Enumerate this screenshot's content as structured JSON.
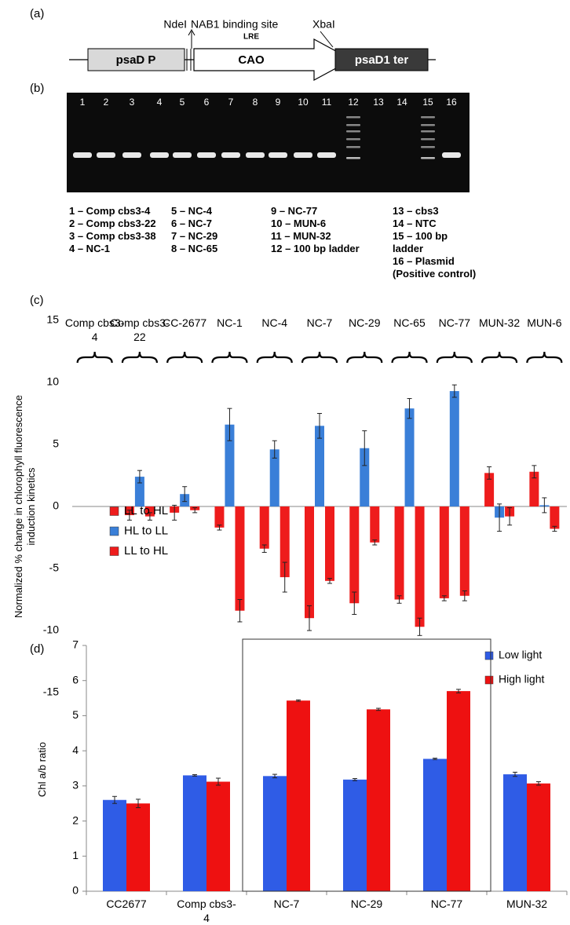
{
  "panel_labels": [
    "(a)",
    "(b)",
    "(c)",
    "(d)"
  ],
  "construct": {
    "ndei": "NdeI",
    "nab1": "NAB1 binding site",
    "lre": "LRE",
    "xbai": "XbaI",
    "segments": [
      "psaD P",
      "CAO",
      "psaD1 ter"
    ]
  },
  "gel": {
    "lanes": [
      "1",
      "2",
      "3",
      "4",
      "5",
      "6",
      "7",
      "8",
      "9",
      "10",
      "11",
      "12",
      "13",
      "14",
      "15",
      "16"
    ],
    "key": [
      "1 – Comp cbs3-4",
      "2 – Comp cbs3-22",
      "3 – Comp cbs3-38",
      "4 – NC-1",
      "5 – NC-4",
      "6 – NC-7",
      "7 – NC-29",
      "8 – NC-65",
      "9 – NC-77",
      "10 – MUN-6",
      "11 – MUN-32",
      "12 – 100 bp ladder",
      "13 – cbs3",
      "14 – NTC",
      "15 – 100 bp ladder",
      "16 – Plasmid (Positive control)"
    ]
  },
  "chart_data": [
    {
      "type": "bar",
      "y_label": "Normalized % change in chlorophyll fluorescence induction kinetics",
      "categories": [
        "Comp cbs3-4",
        "Comp cbs3-22",
        "CC-2677",
        "NC-1",
        "NC-4",
        "NC-7",
        "NC-29",
        "NC-65",
        "NC-77",
        "MUN-32",
        "MUN-6"
      ],
      "series": [
        {
          "name": "LL to HL",
          "color": "#ee1c1c",
          "values": [
            null,
            -0.7,
            -0.5,
            -1.7,
            -3.4,
            -9.0,
            -7.8,
            -7.5,
            -7.4,
            2.7,
            2.8
          ],
          "errors": [
            null,
            0.4,
            0.6,
            0.2,
            0.3,
            1.0,
            0.9,
            0.3,
            0.2,
            0.5,
            0.5
          ]
        },
        {
          "name": "HL to LL",
          "color": "#3a7fd8",
          "values": [
            null,
            2.4,
            1.0,
            6.6,
            4.6,
            6.5,
            4.7,
            7.9,
            9.3,
            -0.9,
            0.1
          ],
          "errors": [
            null,
            0.5,
            0.6,
            1.3,
            0.7,
            1.0,
            1.4,
            0.8,
            0.5,
            1.1,
            0.6
          ]
        },
        {
          "name": "LL to HL",
          "color": "#ee1c1c",
          "values": [
            null,
            -0.8,
            -0.3,
            -8.4,
            -5.7,
            -6.0,
            -2.9,
            -9.7,
            -7.2,
            -0.8,
            -1.8
          ],
          "errors": [
            null,
            0.3,
            0.2,
            0.9,
            1.2,
            0.2,
            0.2,
            0.7,
            0.4,
            0.7,
            0.2
          ]
        }
      ],
      "ylim": [
        -15,
        15
      ],
      "yticks": [
        -15,
        -10,
        -5,
        0,
        5,
        10,
        15
      ],
      "legend": "lower left"
    },
    {
      "type": "bar",
      "y_label": "Chl a/b ratio",
      "categories": [
        "CC2677",
        "Comp cbs3-4",
        "NC-7",
        "NC-29",
        "NC-77",
        "MUN-32"
      ],
      "series": [
        {
          "name": "Low light",
          "color": "#2f5ce6",
          "values": [
            2.6,
            3.3,
            3.28,
            3.18,
            3.77,
            3.33
          ],
          "errors": [
            0.1,
            0.02,
            0.05,
            0.03,
            0.02,
            0.06
          ]
        },
        {
          "name": "High light",
          "color": "#ee1111",
          "values": [
            2.5,
            3.12,
            5.43,
            5.18,
            5.7,
            3.07
          ],
          "errors": [
            0.12,
            0.1,
            0.02,
            0.03,
            0.05,
            0.05
          ]
        }
      ],
      "ylim": [
        0,
        7
      ],
      "yticks": [
        0,
        1,
        2,
        3,
        4,
        5,
        6,
        7
      ],
      "legend": "upper right"
    }
  ]
}
